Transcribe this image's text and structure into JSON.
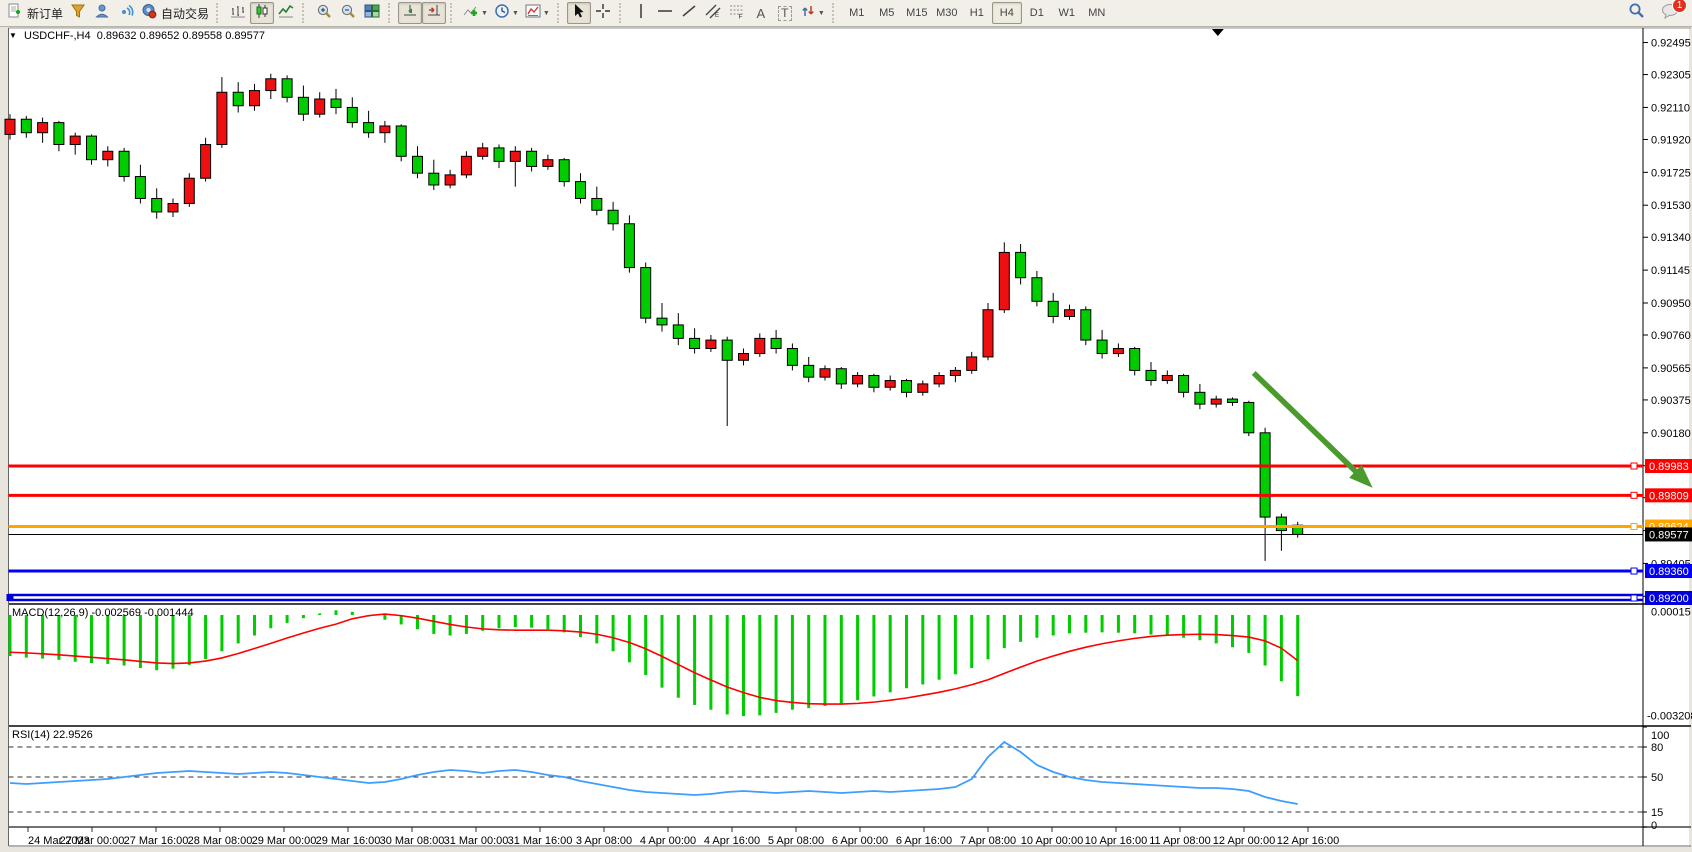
{
  "toolbar": {
    "new_order_label": "新订单",
    "auto_trading_label": "自动交易",
    "text_tool_glyph": "A",
    "label_tool_glyph": "T",
    "chat_badge": "1",
    "timeframes": [
      {
        "label": "M1",
        "active": false
      },
      {
        "label": "M5",
        "active": false
      },
      {
        "label": "M15",
        "active": false
      },
      {
        "label": "M30",
        "active": false
      },
      {
        "label": "H1",
        "active": false
      },
      {
        "label": "H4",
        "active": true
      },
      {
        "label": "D1",
        "active": false
      },
      {
        "label": "W1",
        "active": false
      },
      {
        "label": "MN",
        "active": false
      }
    ],
    "icons": {
      "new_order": "document-plus",
      "funnel": "funnel",
      "profile": "person",
      "signal": "broadcast",
      "auto_trading": "robot-circle",
      "bar_chart": "ohlc-bars",
      "candle_chart": "candlesticks",
      "line_chart": "polyline",
      "zoom_in": "magnifier-plus",
      "zoom_out": "magnifier-minus",
      "tile_windows": "window-grid",
      "auto_scroll": "arrow-over-line",
      "chart_shift": "arrow-to-bar",
      "indicators": "chart-plus",
      "periods": "clock",
      "templates": "mini-chart",
      "cursor": "pointer-arrow",
      "crosshair": "crosshair",
      "vertical_line": "vline",
      "horizontal_line": "hline",
      "trendline": "diagonal",
      "channel": "parallel-lines-E",
      "fibonacci": "dashes-F",
      "arrows_tool": "double-arrow",
      "search": "magnifier",
      "chat": "speech-bubble"
    }
  },
  "chart": {
    "header": {
      "title": "USDCHF-,H4",
      "open": "0.89632",
      "high": "0.89652",
      "low": "0.89558",
      "close": "0.89577"
    },
    "macd_label": "MACD(12,26,9)",
    "macd_values": "-0.002569 -0.001444",
    "rsi_label": "RSI(14)",
    "rsi_value": "22.9526"
  },
  "chart_data": {
    "type": "candlestick",
    "symbol": "USDCHF",
    "timeframe": "H4",
    "title": "USDCHF-,H4  0.89632 0.89652 0.89558 0.89577",
    "up_color": "#ee1010",
    "down_color": "#00cc00",
    "current_price": 0.89577,
    "current_bar": {
      "open": 0.89632,
      "high": 0.89652,
      "low": 0.89558,
      "close": 0.89577
    },
    "y_axis": {
      "min": 0.8917,
      "max": 0.9255,
      "ticks": [
        0.92495,
        0.92305,
        0.9211,
        0.9192,
        0.91725,
        0.9153,
        0.9134,
        0.91145,
        0.9095,
        0.9076,
        0.90565,
        0.90375,
        0.9018,
        0.89985,
        0.89795,
        0.896,
        0.89405,
        0.8921
      ]
    },
    "x_axis_labels": [
      "24 Mar 2023",
      "27 Mar 00:00",
      "27 Mar 16:00",
      "28 Mar 08:00",
      "29 Mar 00:00",
      "29 Mar 16:00",
      "30 Mar 08:00",
      "31 Mar 00:00",
      "31 Mar 16:00",
      "3 Apr 08:00",
      "4 Apr 00:00",
      "4 Apr 16:00",
      "5 Apr 08:00",
      "6 Apr 00:00",
      "6 Apr 16:00",
      "7 Apr 08:00",
      "10 Apr 00:00",
      "10 Apr 16:00",
      "11 Apr 08:00",
      "12 Apr 00:00",
      "12 Apr 16:00"
    ],
    "candles": [
      [
        0.9195,
        0.9207,
        0.9192,
        0.9204
      ],
      [
        0.9204,
        0.9206,
        0.9193,
        0.9196
      ],
      [
        0.9196,
        0.9205,
        0.919,
        0.9202
      ],
      [
        0.9202,
        0.9203,
        0.9185,
        0.9189
      ],
      [
        0.9189,
        0.9196,
        0.9183,
        0.9194
      ],
      [
        0.9194,
        0.9195,
        0.9177,
        0.918
      ],
      [
        0.918,
        0.9188,
        0.9176,
        0.9185
      ],
      [
        0.9185,
        0.9187,
        0.9167,
        0.917
      ],
      [
        0.917,
        0.9177,
        0.9154,
        0.9157
      ],
      [
        0.9157,
        0.9163,
        0.9145,
        0.9149
      ],
      [
        0.9149,
        0.9157,
        0.9146,
        0.9154
      ],
      [
        0.9154,
        0.9172,
        0.9152,
        0.9169
      ],
      [
        0.9169,
        0.9193,
        0.9167,
        0.9189
      ],
      [
        0.9189,
        0.9229,
        0.9187,
        0.922
      ],
      [
        0.922,
        0.9226,
        0.9208,
        0.9212
      ],
      [
        0.9212,
        0.9225,
        0.9209,
        0.9221
      ],
      [
        0.9221,
        0.9231,
        0.9216,
        0.9228
      ],
      [
        0.9228,
        0.923,
        0.9214,
        0.9217
      ],
      [
        0.9217,
        0.9224,
        0.9203,
        0.9207
      ],
      [
        0.9207,
        0.922,
        0.9205,
        0.9216
      ],
      [
        0.9216,
        0.9222,
        0.9207,
        0.9211
      ],
      [
        0.9211,
        0.9217,
        0.9199,
        0.9202
      ],
      [
        0.9202,
        0.9209,
        0.9193,
        0.9196
      ],
      [
        0.9196,
        0.9203,
        0.919,
        0.92
      ],
      [
        0.92,
        0.9201,
        0.9179,
        0.9182
      ],
      [
        0.9182,
        0.9188,
        0.9169,
        0.9172
      ],
      [
        0.9172,
        0.918,
        0.9162,
        0.9165
      ],
      [
        0.9165,
        0.9174,
        0.9163,
        0.9171
      ],
      [
        0.9171,
        0.9185,
        0.9169,
        0.9182
      ],
      [
        0.9182,
        0.919,
        0.918,
        0.9187
      ],
      [
        0.9187,
        0.9189,
        0.9175,
        0.9179
      ],
      [
        0.9179,
        0.9188,
        0.9164,
        0.9185
      ],
      [
        0.9185,
        0.9187,
        0.9173,
        0.9176
      ],
      [
        0.9176,
        0.9183,
        0.9174,
        0.918
      ],
      [
        0.918,
        0.9181,
        0.9164,
        0.9167
      ],
      [
        0.9167,
        0.9172,
        0.9154,
        0.9157
      ],
      [
        0.9157,
        0.9164,
        0.9147,
        0.915
      ],
      [
        0.915,
        0.9155,
        0.9138,
        0.9142
      ],
      [
        0.9142,
        0.9147,
        0.9113,
        0.9116
      ],
      [
        0.9116,
        0.9119,
        0.9083,
        0.9086
      ],
      [
        0.9086,
        0.9095,
        0.9078,
        0.9082
      ],
      [
        0.9082,
        0.9089,
        0.907,
        0.9074
      ],
      [
        0.9074,
        0.908,
        0.9065,
        0.9068
      ],
      [
        0.9068,
        0.9076,
        0.9066,
        0.9073
      ],
      [
        0.9073,
        0.9075,
        0.9022,
        0.9061
      ],
      [
        0.9061,
        0.9068,
        0.9058,
        0.9065
      ],
      [
        0.9065,
        0.9077,
        0.9063,
        0.9074
      ],
      [
        0.9074,
        0.9079,
        0.9065,
        0.9068
      ],
      [
        0.9068,
        0.9071,
        0.9055,
        0.9058
      ],
      [
        0.9058,
        0.9063,
        0.9048,
        0.9051
      ],
      [
        0.9051,
        0.9058,
        0.9049,
        0.9056
      ],
      [
        0.9056,
        0.9057,
        0.9044,
        0.9047
      ],
      [
        0.9047,
        0.9054,
        0.9045,
        0.9052
      ],
      [
        0.9052,
        0.9053,
        0.9042,
        0.9045
      ],
      [
        0.9045,
        0.9052,
        0.9043,
        0.9049
      ],
      [
        0.9049,
        0.905,
        0.9039,
        0.9042
      ],
      [
        0.9042,
        0.9049,
        0.904,
        0.9047
      ],
      [
        0.9047,
        0.9054,
        0.9045,
        0.9052
      ],
      [
        0.9052,
        0.9057,
        0.9048,
        0.9055
      ],
      [
        0.9055,
        0.9066,
        0.9053,
        0.9063
      ],
      [
        0.9063,
        0.9095,
        0.9061,
        0.9091
      ],
      [
        0.9091,
        0.9131,
        0.9089,
        0.9125
      ],
      [
        0.9125,
        0.913,
        0.9106,
        0.911
      ],
      [
        0.911,
        0.9114,
        0.9093,
        0.9096
      ],
      [
        0.9096,
        0.9101,
        0.9083,
        0.9087
      ],
      [
        0.9087,
        0.9094,
        0.9085,
        0.9091
      ],
      [
        0.9091,
        0.9093,
        0.907,
        0.9073
      ],
      [
        0.9073,
        0.9079,
        0.9062,
        0.9065
      ],
      [
        0.9065,
        0.9071,
        0.9063,
        0.9068
      ],
      [
        0.9068,
        0.9069,
        0.9052,
        0.9055
      ],
      [
        0.9055,
        0.906,
        0.9046,
        0.9049
      ],
      [
        0.9049,
        0.9055,
        0.9047,
        0.9052
      ],
      [
        0.9052,
        0.9053,
        0.9039,
        0.9042
      ],
      [
        0.9042,
        0.9047,
        0.9032,
        0.9035
      ],
      [
        0.9035,
        0.904,
        0.9033,
        0.9038
      ],
      [
        0.9038,
        0.9039,
        0.9034,
        0.9036
      ],
      [
        0.9036,
        0.9037,
        0.9016,
        0.9018
      ],
      [
        0.9018,
        0.9021,
        0.8942,
        0.8968
      ],
      [
        0.8968,
        0.897,
        0.8948,
        0.896
      ],
      [
        0.89632,
        0.89652,
        0.89558,
        0.89577
      ]
    ],
    "hlines": [
      {
        "price": 0.89983,
        "label": "0.89983",
        "color": "#ff0000",
        "width": 3,
        "double": false
      },
      {
        "price": 0.89809,
        "label": "0.89809",
        "color": "#ff0000",
        "width": 3,
        "double": false
      },
      {
        "price": 0.89624,
        "label": "0.89624",
        "color": "#ffa500",
        "width": 3,
        "double": false
      },
      {
        "price": 0.8936,
        "label": "0.89360",
        "color": "#0000ff",
        "width": 3,
        "double": false
      },
      {
        "price": 0.892,
        "label": "0.89200",
        "color": "#0000dd",
        "width": 3,
        "double": true
      }
    ],
    "annotations": {
      "arrow": {
        "from_bar": 76.3,
        "from_price": 0.90535,
        "to_bar": 83.6,
        "to_price": 0.89853,
        "color": "#4a9a2e"
      },
      "time_marker_bar": 74.1
    },
    "macd": {
      "label": "MACD(12,26,9)",
      "value_main": -0.002569,
      "value_signal": -0.001444,
      "axis_max": 0.00015,
      "axis_min": -0.003208,
      "hist_color": "#00cc00",
      "signal_color": "#ff0000",
      "histogram": [
        -0.0013,
        -0.00135,
        -0.00138,
        -0.00142,
        -0.00148,
        -0.00152,
        -0.00155,
        -0.0016,
        -0.00168,
        -0.00175,
        -0.0017,
        -0.00158,
        -0.0014,
        -0.00115,
        -0.0009,
        -0.00065,
        -0.00042,
        -0.00025,
        -0.0001,
        5e-05,
        0.00015,
        0.0001,
        -5e-05,
        -0.00015,
        -0.0003,
        -0.00045,
        -0.0006,
        -0.00065,
        -0.0006,
        -0.0005,
        -0.00042,
        -0.00038,
        -0.0004,
        -0.00045,
        -0.00055,
        -0.0007,
        -0.0009,
        -0.00115,
        -0.0015,
        -0.0019,
        -0.0023,
        -0.00262,
        -0.00285,
        -0.003,
        -0.00315,
        -0.0032,
        -0.00318,
        -0.0031,
        -0.003,
        -0.00295,
        -0.00288,
        -0.0028,
        -0.0027,
        -0.00258,
        -0.00245,
        -0.00232,
        -0.0022,
        -0.00205,
        -0.00188,
        -0.00168,
        -0.0014,
        -0.00105,
        -0.00085,
        -0.00072,
        -0.00065,
        -0.00058,
        -0.00056,
        -0.00055,
        -0.00056,
        -0.00058,
        -0.00062,
        -0.00066,
        -0.00072,
        -0.0008,
        -0.0009,
        -0.00102,
        -0.0012,
        -0.0016,
        -0.0021,
        -0.002569
      ],
      "signal": [
        -0.00118,
        -0.0012,
        -0.00123,
        -0.00126,
        -0.0013,
        -0.00134,
        -0.00138,
        -0.00142,
        -0.00147,
        -0.00152,
        -0.00154,
        -0.00152,
        -0.00146,
        -0.00136,
        -0.00122,
        -0.00106,
        -0.0009,
        -0.00073,
        -0.00057,
        -0.00042,
        -0.00029,
        -0.00012,
        -2e-05,
        3e-05,
        -2e-05,
        -0.0001,
        -0.0002,
        -0.0003,
        -0.00038,
        -0.00044,
        -0.00047,
        -0.00048,
        -0.00048,
        -0.00048,
        -0.0005,
        -0.00054,
        -0.00061,
        -0.00072,
        -0.00087,
        -0.00107,
        -0.00131,
        -0.00157,
        -0.00183,
        -0.00206,
        -0.00228,
        -0.00246,
        -0.00261,
        -0.00271,
        -0.00277,
        -0.00281,
        -0.00282,
        -0.00282,
        -0.0028,
        -0.00276,
        -0.0027,
        -0.00263,
        -0.00254,
        -0.00245,
        -0.00234,
        -0.00221,
        -0.00205,
        -0.00185,
        -0.00165,
        -0.00146,
        -0.0013,
        -0.00115,
        -0.00102,
        -0.00091,
        -0.00082,
        -0.00074,
        -0.00068,
        -0.00064,
        -0.00062,
        -0.00061,
        -0.00062,
        -0.00065,
        -0.0007,
        -0.00082,
        -0.00105,
        -0.001444
      ]
    },
    "rsi": {
      "label": "RSI(14)",
      "value": 22.9526,
      "color": "#3e9eff",
      "levels": [
        80,
        50,
        15
      ],
      "axis_labels": [
        100,
        80,
        50,
        15,
        0
      ],
      "values": [
        44,
        43,
        44,
        45,
        46,
        47,
        48,
        50,
        52,
        54,
        55,
        56,
        55,
        54,
        53,
        54,
        55,
        54,
        52,
        50,
        48,
        46,
        44,
        45,
        48,
        52,
        55,
        57,
        56,
        54,
        56,
        57,
        55,
        52,
        50,
        46,
        43,
        40,
        37,
        35,
        34,
        33,
        32,
        33,
        35,
        36,
        35,
        34,
        35,
        36,
        35,
        34,
        35,
        36,
        35,
        36,
        37,
        38,
        40,
        48,
        70,
        85,
        75,
        62,
        55,
        50,
        47,
        45,
        44,
        43,
        42,
        41,
        40,
        39,
        39,
        38,
        36,
        30,
        26,
        22.95
      ]
    }
  }
}
